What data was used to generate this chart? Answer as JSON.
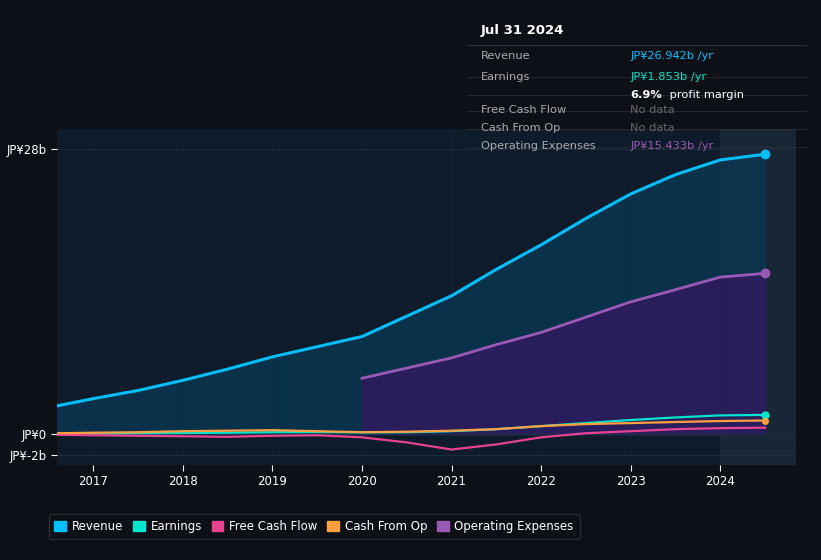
{
  "bg_color": "#0d1117",
  "plot_bg_color": "#0d1b2a",
  "grid_color": "#1e3040",
  "years": [
    2016.6,
    2017.0,
    2017.5,
    2018.0,
    2018.5,
    2019.0,
    2019.5,
    2020.0,
    2020.5,
    2021.0,
    2021.5,
    2022.0,
    2022.5,
    2023.0,
    2023.5,
    2024.0,
    2024.5
  ],
  "revenue": [
    2.8,
    3.5,
    4.3,
    5.3,
    6.4,
    7.6,
    8.6,
    9.6,
    11.6,
    13.6,
    16.2,
    18.6,
    21.2,
    23.6,
    25.5,
    26.942,
    27.5
  ],
  "earnings": [
    0.05,
    0.08,
    0.1,
    0.12,
    0.15,
    0.2,
    0.22,
    0.18,
    0.2,
    0.3,
    0.5,
    0.8,
    1.1,
    1.4,
    1.65,
    1.853,
    1.9
  ],
  "free_cash_flow": [
    -0.05,
    -0.1,
    -0.15,
    -0.2,
    -0.25,
    -0.15,
    -0.1,
    -0.3,
    -0.8,
    -1.5,
    -1.0,
    -0.3,
    0.1,
    0.3,
    0.5,
    0.6,
    0.65
  ],
  "cash_from_op": [
    0.1,
    0.15,
    0.2,
    0.3,
    0.35,
    0.4,
    0.3,
    0.2,
    0.25,
    0.35,
    0.5,
    0.8,
    1.0,
    1.1,
    1.2,
    1.3,
    1.35
  ],
  "operating_expenses": [
    null,
    null,
    null,
    null,
    null,
    null,
    null,
    5.5,
    6.5,
    7.5,
    8.8,
    10.0,
    11.5,
    13.0,
    14.2,
    15.433,
    15.8
  ],
  "revenue_color": "#00bfff",
  "earnings_color": "#00e5cc",
  "free_cash_flow_color": "#e84393",
  "cash_from_op_color": "#ffa040",
  "operating_expenses_color": "#9b59b6",
  "revenue_fill_color": "#0a3550",
  "operating_expenses_fill_color": "#2d1b5e",
  "ylim_min": -3.0,
  "ylim_max": 30.0,
  "ytick_labels": [
    "JP¥-2b",
    "JP¥0",
    "JP¥28b"
  ],
  "ytick_vals": [
    -2,
    0,
    28
  ],
  "xlim_min": 2016.6,
  "xlim_max": 2024.85,
  "highlight_start": 2024.0,
  "legend_items": [
    {
      "label": "Revenue",
      "color": "#00bfff"
    },
    {
      "label": "Earnings",
      "color": "#00e5cc"
    },
    {
      "label": "Free Cash Flow",
      "color": "#e84393"
    },
    {
      "label": "Cash From Op",
      "color": "#ffa040"
    },
    {
      "label": "Operating Expenses",
      "color": "#9b59b6"
    }
  ]
}
